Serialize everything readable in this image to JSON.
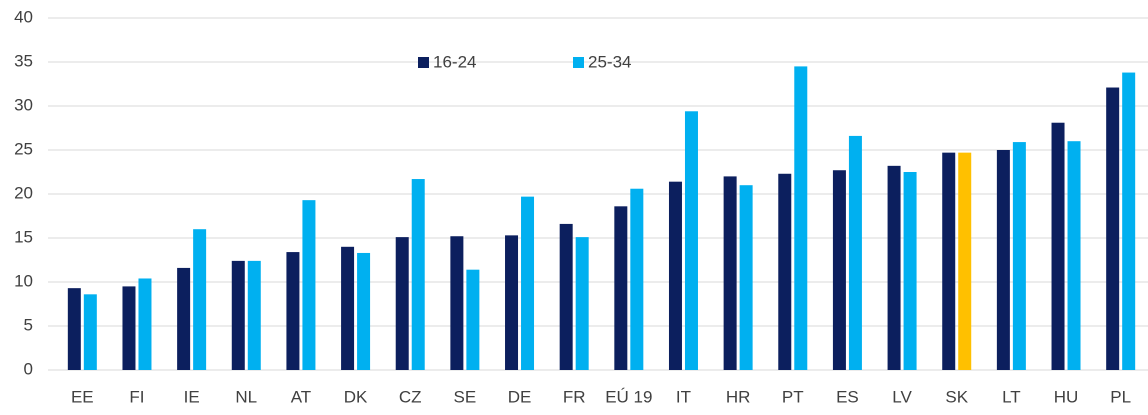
{
  "chart_data": {
    "type": "bar",
    "categories": [
      "EE",
      "FI",
      "IE",
      "NL",
      "AT",
      "DK",
      "CZ",
      "SE",
      "DE",
      "FR",
      "EÚ 19",
      "IT",
      "HR",
      "PT",
      "ES",
      "LV",
      "SK",
      "LT",
      "HU",
      "PL"
    ],
    "series": [
      {
        "name": "16-24",
        "color": "#0c1f5e",
        "values": [
          9.3,
          9.5,
          11.6,
          12.4,
          13.4,
          14.0,
          15.1,
          15.2,
          15.3,
          16.6,
          18.6,
          21.4,
          22.0,
          22.3,
          22.7,
          23.2,
          24.7,
          25.0,
          28.1,
          32.1
        ]
      },
      {
        "name": "25-34",
        "color": "#00b0f0",
        "values": [
          8.6,
          10.4,
          16.0,
          12.4,
          19.3,
          13.3,
          21.7,
          11.4,
          19.7,
          15.1,
          20.6,
          29.4,
          21.0,
          34.5,
          26.6,
          22.5,
          24.7,
          25.9,
          26.0,
          33.8
        ],
        "colors": [
          "#00b0f0",
          "#00b0f0",
          "#00b0f0",
          "#00b0f0",
          "#00b0f0",
          "#00b0f0",
          "#00b0f0",
          "#00b0f0",
          "#00b0f0",
          "#00b0f0",
          "#00b0f0",
          "#00b0f0",
          "#00b0f0",
          "#00b0f0",
          "#00b0f0",
          "#00b0f0",
          "#ffc000",
          "#00b0f0",
          "#00b0f0",
          "#00b0f0"
        ]
      }
    ],
    "ylim": [
      0,
      40
    ],
    "yticks": [
      0,
      5,
      10,
      15,
      20,
      25,
      30,
      35,
      40
    ],
    "grid": true,
    "legend": "top"
  }
}
